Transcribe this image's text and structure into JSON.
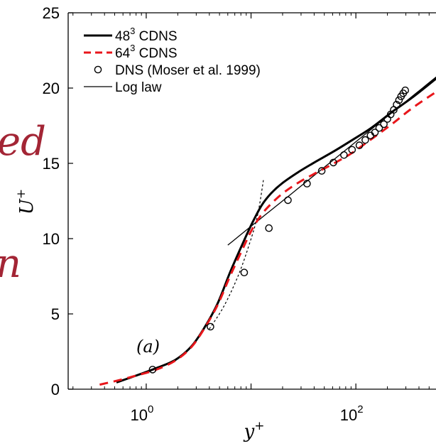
{
  "background_text": [
    {
      "text": "ed",
      "color": "#a32535"
    },
    {
      "text": "n",
      "color": "#a32535"
    }
  ],
  "chart_data": {
    "type": "line",
    "xscale": "log",
    "xlabel_base": "y",
    "xlabel_sup": "+",
    "ylabel_base": "U",
    "ylabel_sup": "+",
    "xlim": [
      0.18,
      600
    ],
    "ylim": [
      0,
      25
    ],
    "xticks": [
      {
        "value": 1,
        "base": "10",
        "exp": "0"
      },
      {
        "value": 100,
        "base": "10",
        "exp": "2"
      }
    ],
    "yticks": [
      0,
      5,
      10,
      15,
      20,
      25
    ],
    "panel_label": "(a)",
    "legend_position": "top-left",
    "legend": [
      {
        "base": "48",
        "sup": "3",
        "rest": " CDNS",
        "style": "solid-thick",
        "color": "#000000"
      },
      {
        "base": "64",
        "sup": "3",
        "rest": " CDNS",
        "style": "dashed",
        "color": "#e8161b"
      },
      {
        "base": "DNS (Moser et al. 1999)",
        "sup": "",
        "rest": "",
        "style": "marker",
        "color": "#000000"
      },
      {
        "base": "Log law",
        "sup": "",
        "rest": "",
        "style": "solid-thin",
        "color": "#000000"
      }
    ],
    "series": [
      {
        "name": "48³ CDNS",
        "style": "solid-thick",
        "color": "#000000",
        "x": [
          0.52,
          0.8,
          1.25,
          1.9,
          2.7,
          3.6,
          4.8,
          6.3,
          8.3,
          10.2,
          12.6,
          15.5,
          20,
          28,
          40,
          60,
          90,
          140,
          220,
          350,
          600
        ],
        "y": [
          0.45,
          0.9,
          1.4,
          1.95,
          2.85,
          4.1,
          5.7,
          7.75,
          9.65,
          11.0,
          12.2,
          13.0,
          13.7,
          14.4,
          15.05,
          15.75,
          16.5,
          17.35,
          18.4,
          19.4,
          20.7
        ]
      },
      {
        "name": "64³ CDNS",
        "style": "dashed",
        "color": "#e8161b",
        "x": [
          0.36,
          0.55,
          0.8,
          1.25,
          1.9,
          2.7,
          3.6,
          4.8,
          6.3,
          8.3,
          10.2,
          12.6,
          15.5,
          20,
          28,
          40,
          60,
          90,
          140,
          220,
          350,
          600
        ],
        "y": [
          0.3,
          0.6,
          0.9,
          1.3,
          1.9,
          2.8,
          4.05,
          5.6,
          7.5,
          9.3,
          10.6,
          11.6,
          12.3,
          13.0,
          13.7,
          14.3,
          14.95,
          15.65,
          16.6,
          17.6,
          18.7,
          19.8
        ]
      },
      {
        "name": "DNS (Moser et al. 1999)",
        "style": "marker",
        "color": "#000000",
        "x": [
          1.15,
          4.1,
          8.6,
          14.8,
          22.5,
          34.2,
          47.3,
          61,
          77,
          92,
          108,
          123,
          138,
          152,
          167,
          185,
          200,
          215,
          230,
          245,
          258,
          270,
          283,
          296
        ],
        "y": [
          1.3,
          4.15,
          7.75,
          10.7,
          12.55,
          13.65,
          14.5,
          15.05,
          15.55,
          15.9,
          16.2,
          16.55,
          16.85,
          17.05,
          17.35,
          17.6,
          17.95,
          18.25,
          18.55,
          18.9,
          19.2,
          19.45,
          19.65,
          19.85
        ]
      }
    ],
    "guides": [
      {
        "name": "Log law",
        "style": "solid-thin",
        "color": "#000000",
        "kappa": 0.41,
        "B": 5.2,
        "x_range": [
          6,
          600
        ]
      },
      {
        "name": "viscous sublayer",
        "style": "dotted",
        "color": "#000000",
        "x": [
          4.0,
          5.5,
          7.5,
          9.5,
          11.5,
          13.2
        ],
        "y": [
          4.0,
          5.5,
          7.5,
          9.5,
          11.5,
          14.0
        ]
      }
    ]
  }
}
